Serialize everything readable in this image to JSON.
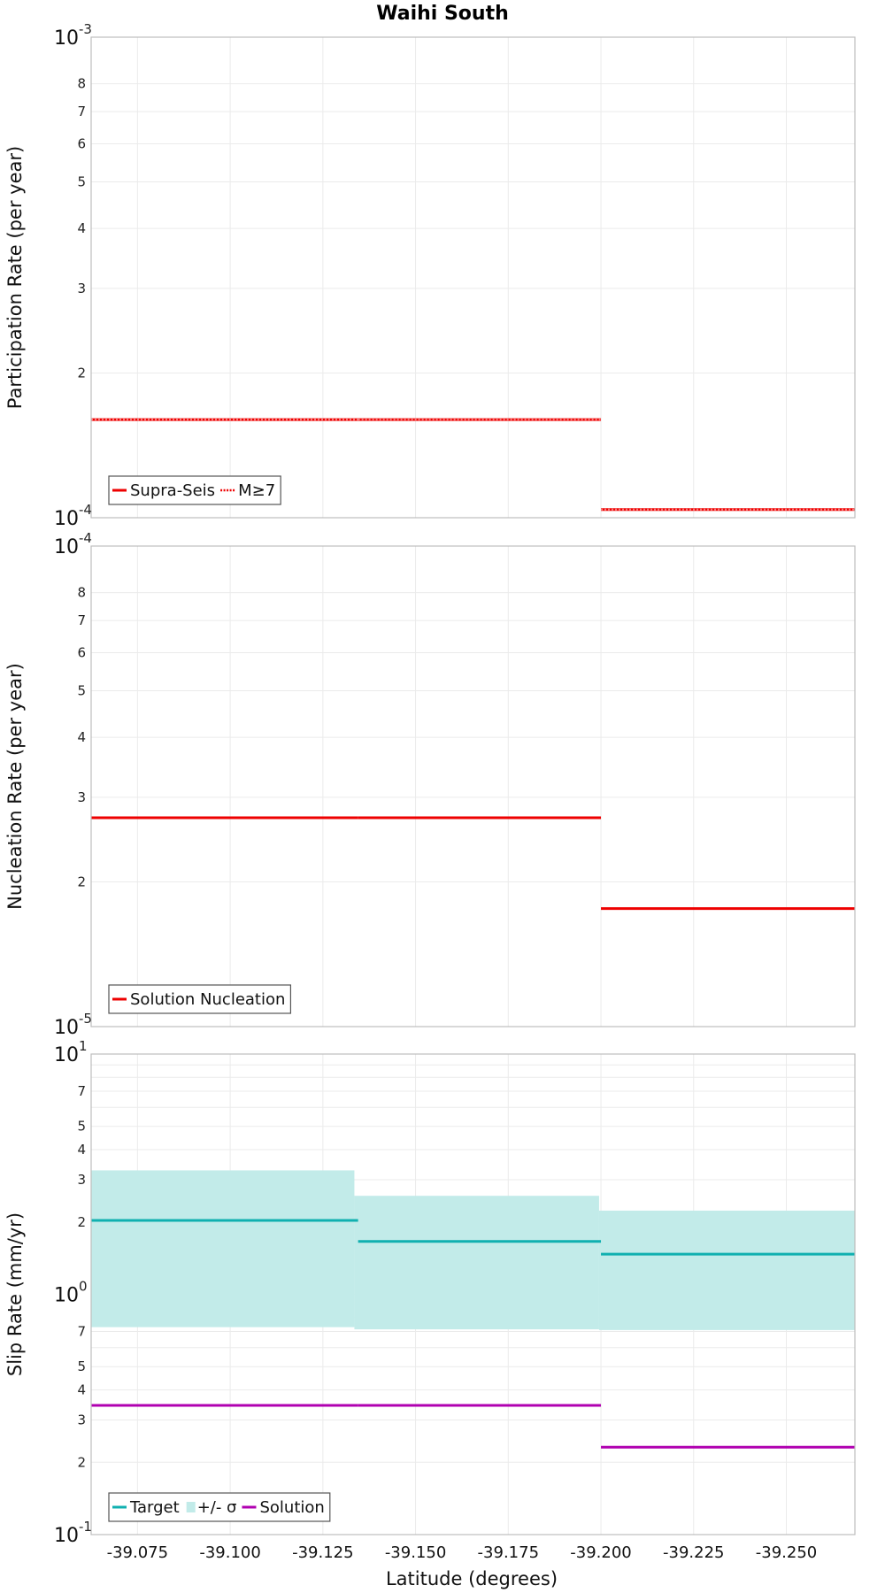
{
  "title": "Waihi South",
  "xlabel": "Latitude (degrees)",
  "xlim": [
    -39.0625,
    -39.2685
  ],
  "x_ticks": [
    -39.075,
    -39.1,
    -39.125,
    -39.15,
    -39.175,
    -39.2,
    -39.225,
    -39.25
  ],
  "x_tick_labels": [
    "-39.075",
    "-39.100",
    "-39.125",
    "-39.150",
    "-39.175",
    "-39.200",
    "-39.225",
    "-39.250"
  ],
  "colors": {
    "solution_red": "#ee0000",
    "target_teal": "#10b0b0",
    "sigma_fill": "#c2ebe9",
    "solution_purple": "#b000b0"
  },
  "chart_data": [
    {
      "type": "line",
      "panel": "participation",
      "ylabel": "Participation Rate (per year)",
      "yscale": "log",
      "ylim": [
        0.0001,
        0.001
      ],
      "decade_labels": [
        {
          "value": 0.0001,
          "base": "10",
          "exp": "-4"
        },
        {
          "value": 0.001,
          "base": "10",
          "exp": "-3"
        }
      ],
      "minor_ticks": [
        {
          "value": 0.0002,
          "label": "2"
        },
        {
          "value": 0.0003,
          "label": "3"
        },
        {
          "value": 0.0004,
          "label": "4"
        },
        {
          "value": 0.0005,
          "label": "5"
        },
        {
          "value": 0.0006,
          "label": "6"
        },
        {
          "value": 0.0007,
          "label": "7"
        },
        {
          "value": 0.0008,
          "label": "8"
        }
      ],
      "series": [
        {
          "name": "Supra-Seis",
          "style": "solid",
          "color": "#ee0000",
          "segments": [
            {
              "x0": -39.0625,
              "x1": -39.1345,
              "y": 0.00016
            },
            {
              "x0": -39.1345,
              "x1": -39.2,
              "y": 0.00016
            },
            {
              "x0": -39.2,
              "x1": -39.2685,
              "y": 0.000104
            }
          ]
        },
        {
          "name": "M≥7",
          "style": "dotted",
          "color": "#ee0000",
          "segments": [
            {
              "x0": -39.0625,
              "x1": -39.1345,
              "y": 0.00016
            },
            {
              "x0": -39.1345,
              "x1": -39.2,
              "y": 0.00016
            },
            {
              "x0": -39.2,
              "x1": -39.2685,
              "y": 0.000104
            }
          ]
        }
      ],
      "legend": {
        "placement": "bottom-left",
        "entries": [
          {
            "label": "Supra-Seis",
            "style": "solid",
            "color": "#ee0000"
          },
          {
            "label": "M≥7",
            "style": "dotted",
            "color": "#ee0000"
          }
        ]
      }
    },
    {
      "type": "line",
      "panel": "nucleation",
      "ylabel": "Nucleation Rate (per year)",
      "yscale": "log",
      "ylim": [
        1e-05,
        0.0001
      ],
      "decade_labels": [
        {
          "value": 1e-05,
          "base": "10",
          "exp": "-5"
        },
        {
          "value": 0.0001,
          "base": "10",
          "exp": "-4"
        }
      ],
      "minor_ticks": [
        {
          "value": 2e-05,
          "label": "2"
        },
        {
          "value": 3e-05,
          "label": "3"
        },
        {
          "value": 4e-05,
          "label": "4"
        },
        {
          "value": 5e-05,
          "label": "5"
        },
        {
          "value": 6e-05,
          "label": "6"
        },
        {
          "value": 7e-05,
          "label": "7"
        },
        {
          "value": 8e-05,
          "label": "8"
        }
      ],
      "series": [
        {
          "name": "Solution Nucleation",
          "style": "solid",
          "color": "#ee0000",
          "segments": [
            {
              "x0": -39.0625,
              "x1": -39.1345,
              "y": 2.72e-05
            },
            {
              "x0": -39.1345,
              "x1": -39.2,
              "y": 2.72e-05
            },
            {
              "x0": -39.2,
              "x1": -39.2685,
              "y": 1.76e-05
            }
          ]
        }
      ],
      "legend": {
        "placement": "bottom-left",
        "entries": [
          {
            "label": "Solution Nucleation",
            "style": "solid",
            "color": "#ee0000"
          }
        ]
      }
    },
    {
      "type": "line",
      "panel": "slip",
      "ylabel": "Slip Rate (mm/yr)",
      "yscale": "log",
      "ylim": [
        0.1,
        10
      ],
      "decade_labels": [
        {
          "value": 0.1,
          "base": "10",
          "exp": "-1"
        },
        {
          "value": 1,
          "base": "10",
          "exp": "0"
        },
        {
          "value": 10,
          "base": "10",
          "exp": "1"
        }
      ],
      "minor_ticks": [
        {
          "value": 0.2,
          "label": "2"
        },
        {
          "value": 0.3,
          "label": "3"
        },
        {
          "value": 0.4,
          "label": "4"
        },
        {
          "value": 0.5,
          "label": "5"
        },
        {
          "value": 0.7,
          "label": "7"
        },
        {
          "value": 2,
          "label": "2"
        },
        {
          "value": 3,
          "label": "3"
        },
        {
          "value": 4,
          "label": "4"
        },
        {
          "value": 5,
          "label": "5"
        },
        {
          "value": 7,
          "label": "7"
        }
      ],
      "gridlines_only": [
        0.6,
        0.8,
        0.9,
        6,
        8,
        9
      ],
      "bands": [
        {
          "name": "+/- σ",
          "color": "#c2ebe9",
          "segments": [
            {
              "x0": -39.0625,
              "x1": -39.1335,
              "low": 0.73,
              "high": 3.28
            },
            {
              "x0": -39.1335,
              "x1": -39.1995,
              "low": 0.715,
              "high": 2.57
            },
            {
              "x0": -39.1995,
              "x1": -39.2685,
              "low": 0.71,
              "high": 2.23
            }
          ]
        }
      ],
      "series": [
        {
          "name": "Target",
          "style": "solid",
          "color": "#10b0b0",
          "segments": [
            {
              "x0": -39.0625,
              "x1": -39.1345,
              "y": 2.03
            },
            {
              "x0": -39.1345,
              "x1": -39.2,
              "y": 1.66
            },
            {
              "x0": -39.2,
              "x1": -39.2685,
              "y": 1.47
            }
          ]
        },
        {
          "name": "Solution",
          "style": "solid",
          "color": "#b000b0",
          "segments": [
            {
              "x0": -39.0625,
              "x1": -39.1345,
              "y": 0.345
            },
            {
              "x0": -39.1345,
              "x1": -39.2,
              "y": 0.345
            },
            {
              "x0": -39.2,
              "x1": -39.2685,
              "y": 0.231
            }
          ]
        }
      ],
      "legend": {
        "placement": "bottom-left",
        "entries": [
          {
            "label": "Target",
            "style": "solid",
            "color": "#10b0b0"
          },
          {
            "label": "+/- σ",
            "style": "fill",
            "color": "#c2ebe9"
          },
          {
            "label": "Solution",
            "style": "solid",
            "color": "#b000b0"
          }
        ]
      }
    }
  ]
}
